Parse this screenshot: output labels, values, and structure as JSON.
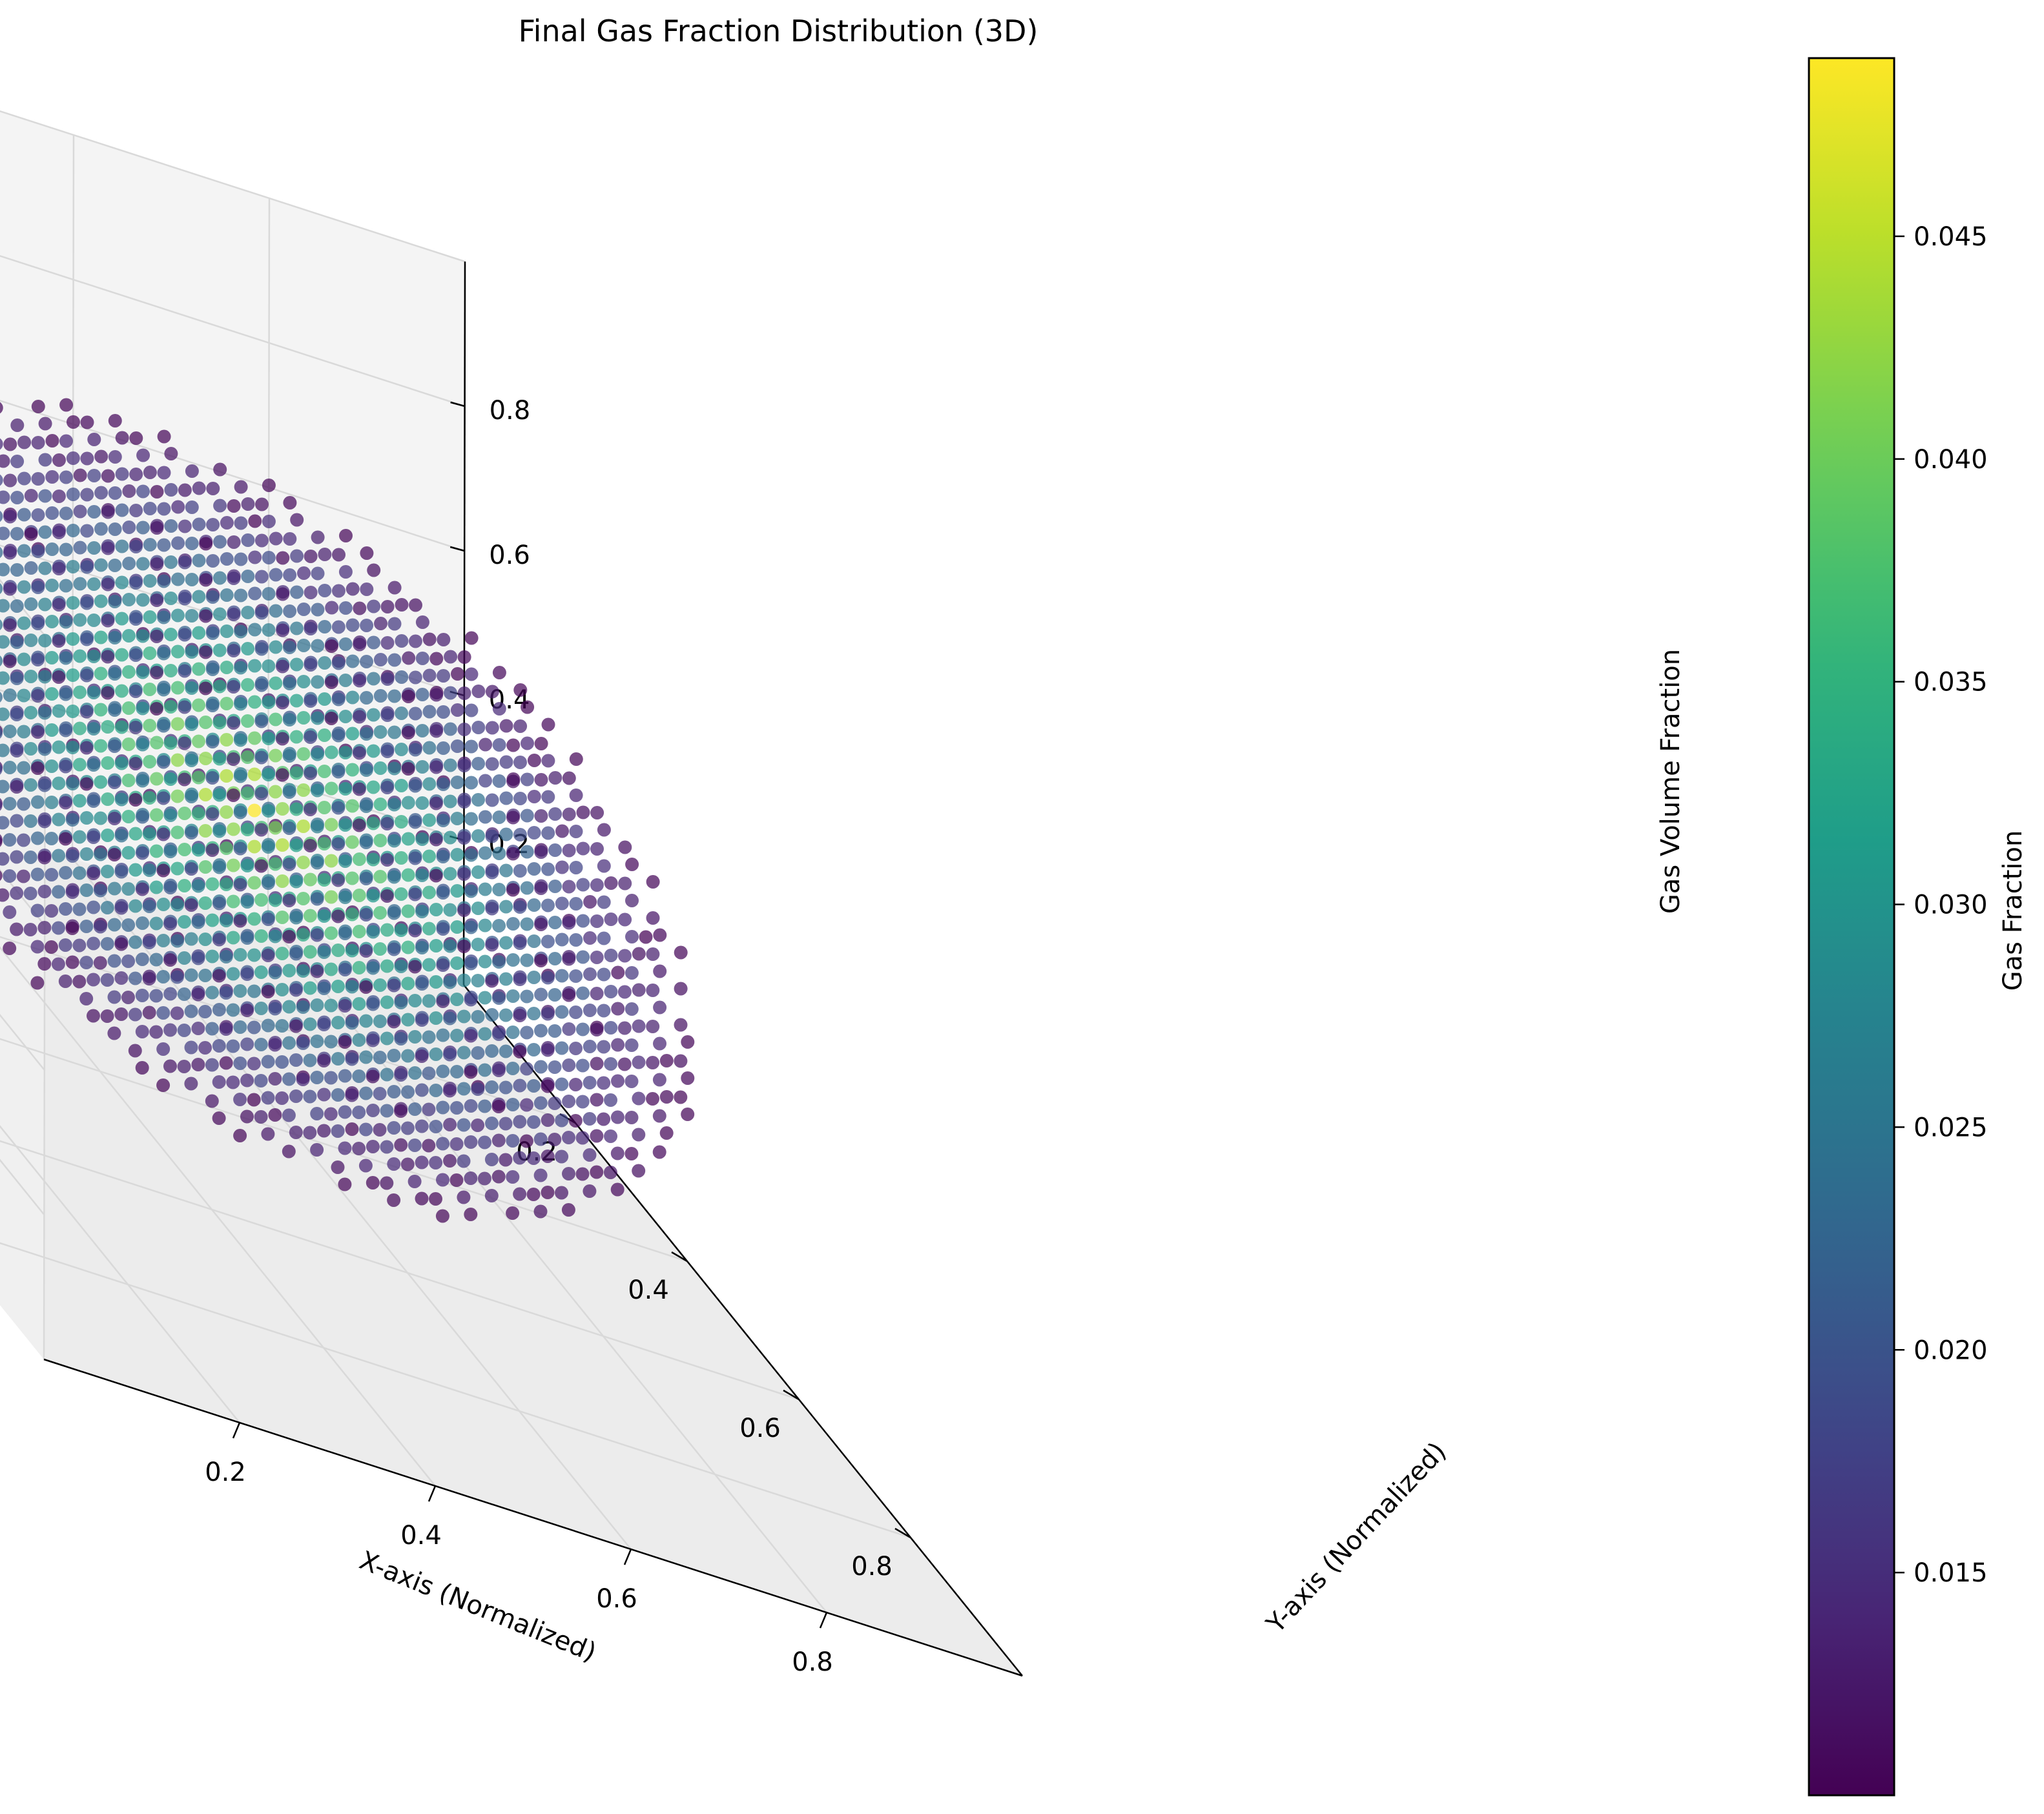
{
  "chart_data": {
    "type": "scatter",
    "projection": "3d",
    "title": "Final Gas Fraction Distribution (3D)",
    "xlabel": "X-axis (Normalized)",
    "ylabel": "Y-axis (Normalized)",
    "zlabel": "Gas Volume Fraction",
    "xlim": [
      0.0,
      1.0
    ],
    "ylim": [
      0.0,
      1.0
    ],
    "zlim": [
      0.0,
      1.0
    ],
    "xticks": [
      "0.2",
      "0.4",
      "0.6",
      "0.8"
    ],
    "yticks": [
      "0.2",
      "0.4",
      "0.6",
      "0.8"
    ],
    "zticks": [
      "0.2",
      "0.4",
      "0.6",
      "0.8"
    ],
    "grid": true,
    "colormap": "viridis",
    "colorbar": {
      "label": "Gas Fraction",
      "range": [
        0.01,
        0.049
      ],
      "ticks": [
        "0.015",
        "0.020",
        "0.025",
        "0.030",
        "0.035",
        "0.040",
        "0.045"
      ]
    },
    "points": {
      "shape": "sphere",
      "center": [
        0.5,
        0.5,
        0.5
      ],
      "radius": 0.4,
      "grid_spacing": 0.05,
      "value_at_center": 0.049,
      "value_at_surface": 0.01
    }
  },
  "colors": {
    "pane_fill": "#f2f2f2",
    "grid_line": "#d9d9d9",
    "axis_line": "#000000",
    "viridis": [
      "#440154",
      "#482878",
      "#3e4989",
      "#31688e",
      "#26828e",
      "#1f9e89",
      "#35b779",
      "#6ece58",
      "#b5de2b",
      "#fde725"
    ]
  }
}
